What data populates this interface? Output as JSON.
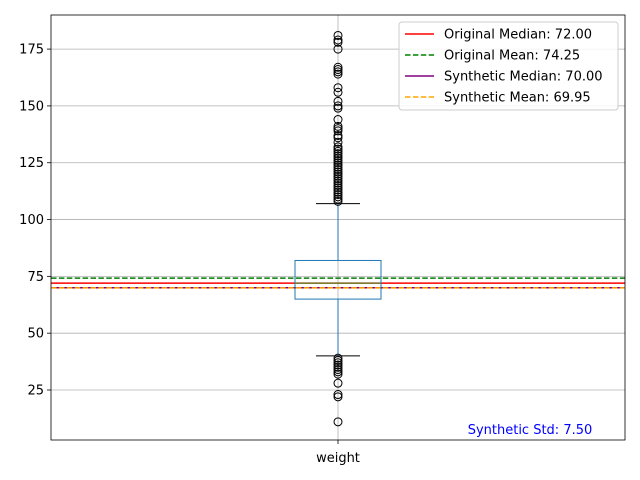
{
  "chart_data": {
    "type": "box",
    "categories": [
      "weight"
    ],
    "ylim": [
      3,
      190
    ],
    "yticks": [
      25,
      50,
      75,
      100,
      125,
      150,
      175
    ],
    "grid": true,
    "box": {
      "q1": 65,
      "median": 72,
      "q3": 82,
      "whisker_low": 40,
      "whisker_high": 107,
      "outliers_high": [
        108,
        109,
        110,
        111,
        112,
        113,
        114,
        115,
        116,
        117,
        118,
        119,
        120,
        121,
        122,
        123,
        124,
        125,
        126,
        127,
        128,
        129,
        130,
        131,
        132,
        134,
        136,
        137,
        139,
        140,
        141,
        144,
        149,
        150,
        152,
        156,
        158,
        164,
        165,
        166,
        167,
        175,
        178,
        179,
        181
      ],
      "outliers_low": [
        39,
        38,
        37,
        36,
        35,
        34,
        33,
        32,
        28,
        23,
        22,
        11
      ]
    },
    "reference_lines": [
      {
        "label": "Original Median: 72.00",
        "value": 72.0,
        "color": "#ff0000",
        "style": "solid"
      },
      {
        "label": "Original Mean: 74.25",
        "value": 74.25,
        "color": "#008000",
        "style": "dashed"
      },
      {
        "label": "Synthetic Median: 70.00",
        "value": 70.0,
        "color": "#800080",
        "style": "solid"
      },
      {
        "label": "Synthetic Mean: 69.95",
        "value": 69.95,
        "color": "#ffa500",
        "style": "dashed"
      }
    ],
    "annotation": {
      "text": "Synthetic Std: 7.50",
      "color": "#0000ff"
    },
    "legend_position": "top-right",
    "box_color": "#1f77b4"
  }
}
